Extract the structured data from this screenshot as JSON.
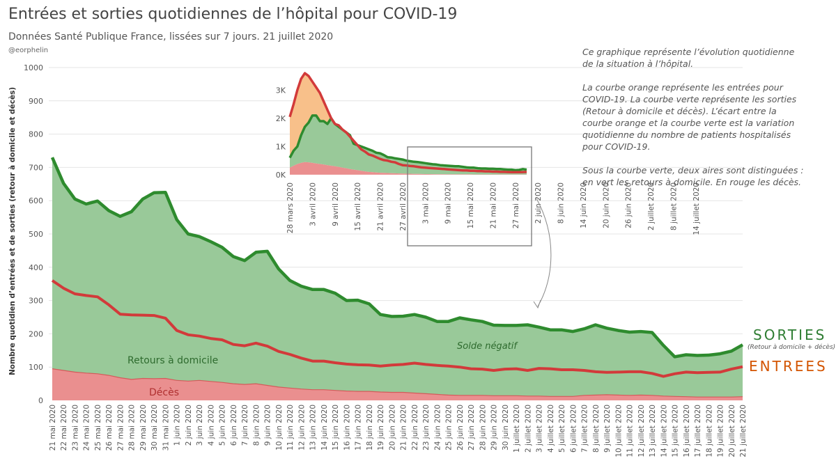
{
  "header": {
    "title": "Entrées et sorties quotidiennes de l’hôpital pour COVID-19",
    "subtitle": "Données Santé Publique France, lissées sur 7 jours. 21 juillet 2020",
    "author": "@eorphelin"
  },
  "description": [
    "Ce graphique représente l’évolution quotidienne de la situation à l’hôpital.",
    "La courbe orange représente les entrées pour COVID-19. La courbe verte représente les sorties (Retour à domicile et décès). L’écart entre la courbe orange et la courbe verte est la variation quotidienne du nombre de patients hospitalisés pour COVID-19.",
    "Sous la courbe verte, deux aires sont distinguées : en vert les retours à domicile. En rouge les décès."
  ],
  "legend": {
    "sorties": "SORTIES",
    "sorties_detail": "(Retour à domicile + décès)",
    "entrees": "ENTREES"
  },
  "colors": {
    "sorties_line": "#2e8b2e",
    "sorties_area": "#99c999",
    "entrees_line": "#d23a3a",
    "entrees_area_above": "#f8c08a",
    "deces_area": "#ea8f8f",
    "gray": "#888888"
  },
  "chart_data": [
    {
      "type": "area",
      "ylabel": "Nombre quotidien d’entrées et de sorties (retour à domicile et décès)",
      "ylim": [
        0,
        1000
      ],
      "yticks": [
        0,
        100,
        200,
        300,
        400,
        500,
        600,
        700,
        800,
        900,
        1000
      ],
      "grid": true,
      "x": [
        "21 mai 2020",
        "22 mai 2020",
        "23 mai 2020",
        "24 mai 2020",
        "25 mai 2020",
        "26 mai 2020",
        "27 mai 2020",
        "28 mai 2020",
        "29 mai 2020",
        "30 mai 2020",
        "31 mai 2020",
        "1 juin 2020",
        "2 juin 2020",
        "3 juin 2020",
        "4 juin 2020",
        "5 juin 2020",
        "6 juin 2020",
        "7 juin 2020",
        "8 juin 2020",
        "9 juin 2020",
        "10 juin 2020",
        "11 juin 2020",
        "12 juin 2020",
        "13 juin 2020",
        "14 juin 2020",
        "15 juin 2020",
        "16 juin 2020",
        "17 juin 2020",
        "18 juin 2020",
        "19 juin 2020",
        "20 juin 2020",
        "21 juin 2020",
        "22 juin 2020",
        "23 juin 2020",
        "24 juin 2020",
        "25 juin 2020",
        "26 juin 2020",
        "27 juin 2020",
        "28 juin 2020",
        "29 juin 2020",
        "30 juin 2020",
        "1 juillet 2020",
        "2 juillet 2020",
        "3 juillet 2020",
        "4 juillet 2020",
        "5 juillet 2020",
        "6 juillet 2020",
        "7 juillet 2020",
        "8 juillet 2020",
        "9 juillet 2020",
        "10 juillet 2020",
        "11 juillet 2020",
        "12 juillet 2020",
        "13 juillet 2020",
        "14 juillet 2020",
        "15 juillet 2020",
        "16 juillet 2020",
        "17 juillet 2020",
        "18 juillet 2020",
        "19 juillet 2020",
        "20 juillet 2020",
        "21 juillet 2020"
      ],
      "series": [
        {
          "name": "SORTIES",
          "values": [
            730,
            652,
            605,
            590,
            599,
            570,
            553,
            567,
            605,
            624,
            625,
            543,
            500,
            492,
            477,
            460,
            432,
            420,
            445,
            448,
            395,
            360,
            343,
            333,
            333,
            322,
            300,
            301,
            290,
            258,
            252,
            253,
            258,
            250,
            237,
            237,
            248,
            242,
            237,
            226,
            225,
            225,
            227,
            220,
            212,
            212,
            207,
            215,
            227,
            217,
            210,
            205,
            207,
            204,
            165,
            131,
            137,
            135,
            136,
            140,
            148,
            167
          ]
        },
        {
          "name": "ENTREES",
          "values": [
            360,
            337,
            320,
            315,
            311,
            287,
            259,
            257,
            256,
            255,
            247,
            210,
            197,
            193,
            186,
            182,
            168,
            164,
            172,
            163,
            147,
            138,
            127,
            118,
            118,
            113,
            109,
            107,
            106,
            103,
            106,
            108,
            112,
            108,
            105,
            103,
            100,
            95,
            94,
            90,
            94,
            95,
            90,
            96,
            95,
            92,
            92,
            90,
            86,
            84,
            85,
            86,
            86,
            81,
            72,
            80,
            85,
            83,
            84,
            85,
            94,
            101
          ]
        },
        {
          "name": "Décès",
          "values": [
            95,
            90,
            85,
            82,
            80,
            75,
            68,
            63,
            66,
            65,
            66,
            60,
            58,
            60,
            57,
            54,
            50,
            48,
            50,
            45,
            40,
            37,
            34,
            32,
            32,
            30,
            28,
            27,
            27,
            25,
            24,
            24,
            22,
            20,
            18,
            16,
            15,
            15,
            15,
            14,
            14,
            14,
            13,
            13,
            12,
            12,
            12,
            15,
            16,
            17,
            16,
            15,
            16,
            15,
            13,
            12,
            11,
            10,
            10,
            10,
            10,
            11
          ]
        }
      ],
      "annotations": {
        "retours": "Retours à domicile",
        "deces": "Décès",
        "solde": "Solde négatif"
      }
    },
    {
      "type": "area",
      "yticks": [
        {
          "v": 0,
          "label": "0K"
        },
        {
          "v": 1000,
          "label": "1K"
        },
        {
          "v": 2000,
          "label": "2K"
        },
        {
          "v": 3000,
          "label": "3K"
        }
      ],
      "ylim": [
        -150,
        3800
      ],
      "xticks": [
        "28 mars 2020",
        "3 avril 2020",
        "9 avril 2020",
        "15 avril 2020",
        "21 avril 2020",
        "27 avril 2020",
        "3 mai 2020",
        "9 mai 2020",
        "15 mai 2020",
        "21 mai 2020",
        "27 mai 2020",
        "2 juin 2020",
        "8 juin 2020",
        "14 juin 2020",
        "20 juin 2020",
        "26 juin 2020",
        "2 juillet 2020",
        "8 juillet 2020",
        "14 juillet 2020"
      ],
      "series": [
        {
          "name": "SORTIES",
          "values": [
            600,
            850,
            1000,
            1400,
            1700,
            1850,
            2100,
            2100,
            1900,
            1900,
            1800,
            2000,
            1800,
            1700,
            1600,
            1500,
            1400,
            1100,
            1050,
            1000,
            950,
            900,
            850,
            780,
            760,
            700,
            620,
            610,
            580,
            560,
            540,
            500,
            480,
            460,
            450,
            430,
            410,
            390,
            370,
            360,
            340,
            330,
            320,
            310,
            300,
            300,
            280,
            260,
            250,
            250,
            230,
            220,
            220,
            210,
            210,
            200,
            200,
            190,
            180,
            180,
            160,
            170,
            200,
            180
          ]
        },
        {
          "name": "ENTREES",
          "values": [
            2050,
            2500,
            3000,
            3400,
            3600,
            3500,
            3300,
            3100,
            2900,
            2600,
            2300,
            2000,
            1800,
            1750,
            1600,
            1500,
            1350,
            1200,
            1050,
            900,
            820,
            720,
            680,
            620,
            560,
            520,
            500,
            460,
            440,
            380,
            340,
            330,
            310,
            300,
            280,
            260,
            250,
            240,
            230,
            220,
            210,
            200,
            190,
            180,
            170,
            160,
            150,
            150,
            140,
            140,
            130,
            130,
            120,
            120,
            110,
            110,
            100,
            100,
            95,
            90,
            90,
            90,
            95,
            100
          ]
        },
        {
          "name": "Décès",
          "values": [
            250,
            320,
            380,
            420,
            450,
            440,
            420,
            400,
            380,
            360,
            340,
            320,
            300,
            280,
            250,
            230,
            200,
            180,
            160,
            140,
            120,
            100,
            90,
            80,
            70,
            65,
            60,
            55,
            50,
            45,
            40,
            38,
            35,
            30,
            28,
            26,
            24,
            22,
            20,
            18,
            16,
            15,
            14,
            14,
            13,
            13,
            12,
            12,
            12,
            11,
            11,
            10,
            10,
            10,
            10,
            10,
            10,
            10,
            10,
            10,
            10,
            10,
            10,
            10
          ]
        }
      ]
    }
  ]
}
